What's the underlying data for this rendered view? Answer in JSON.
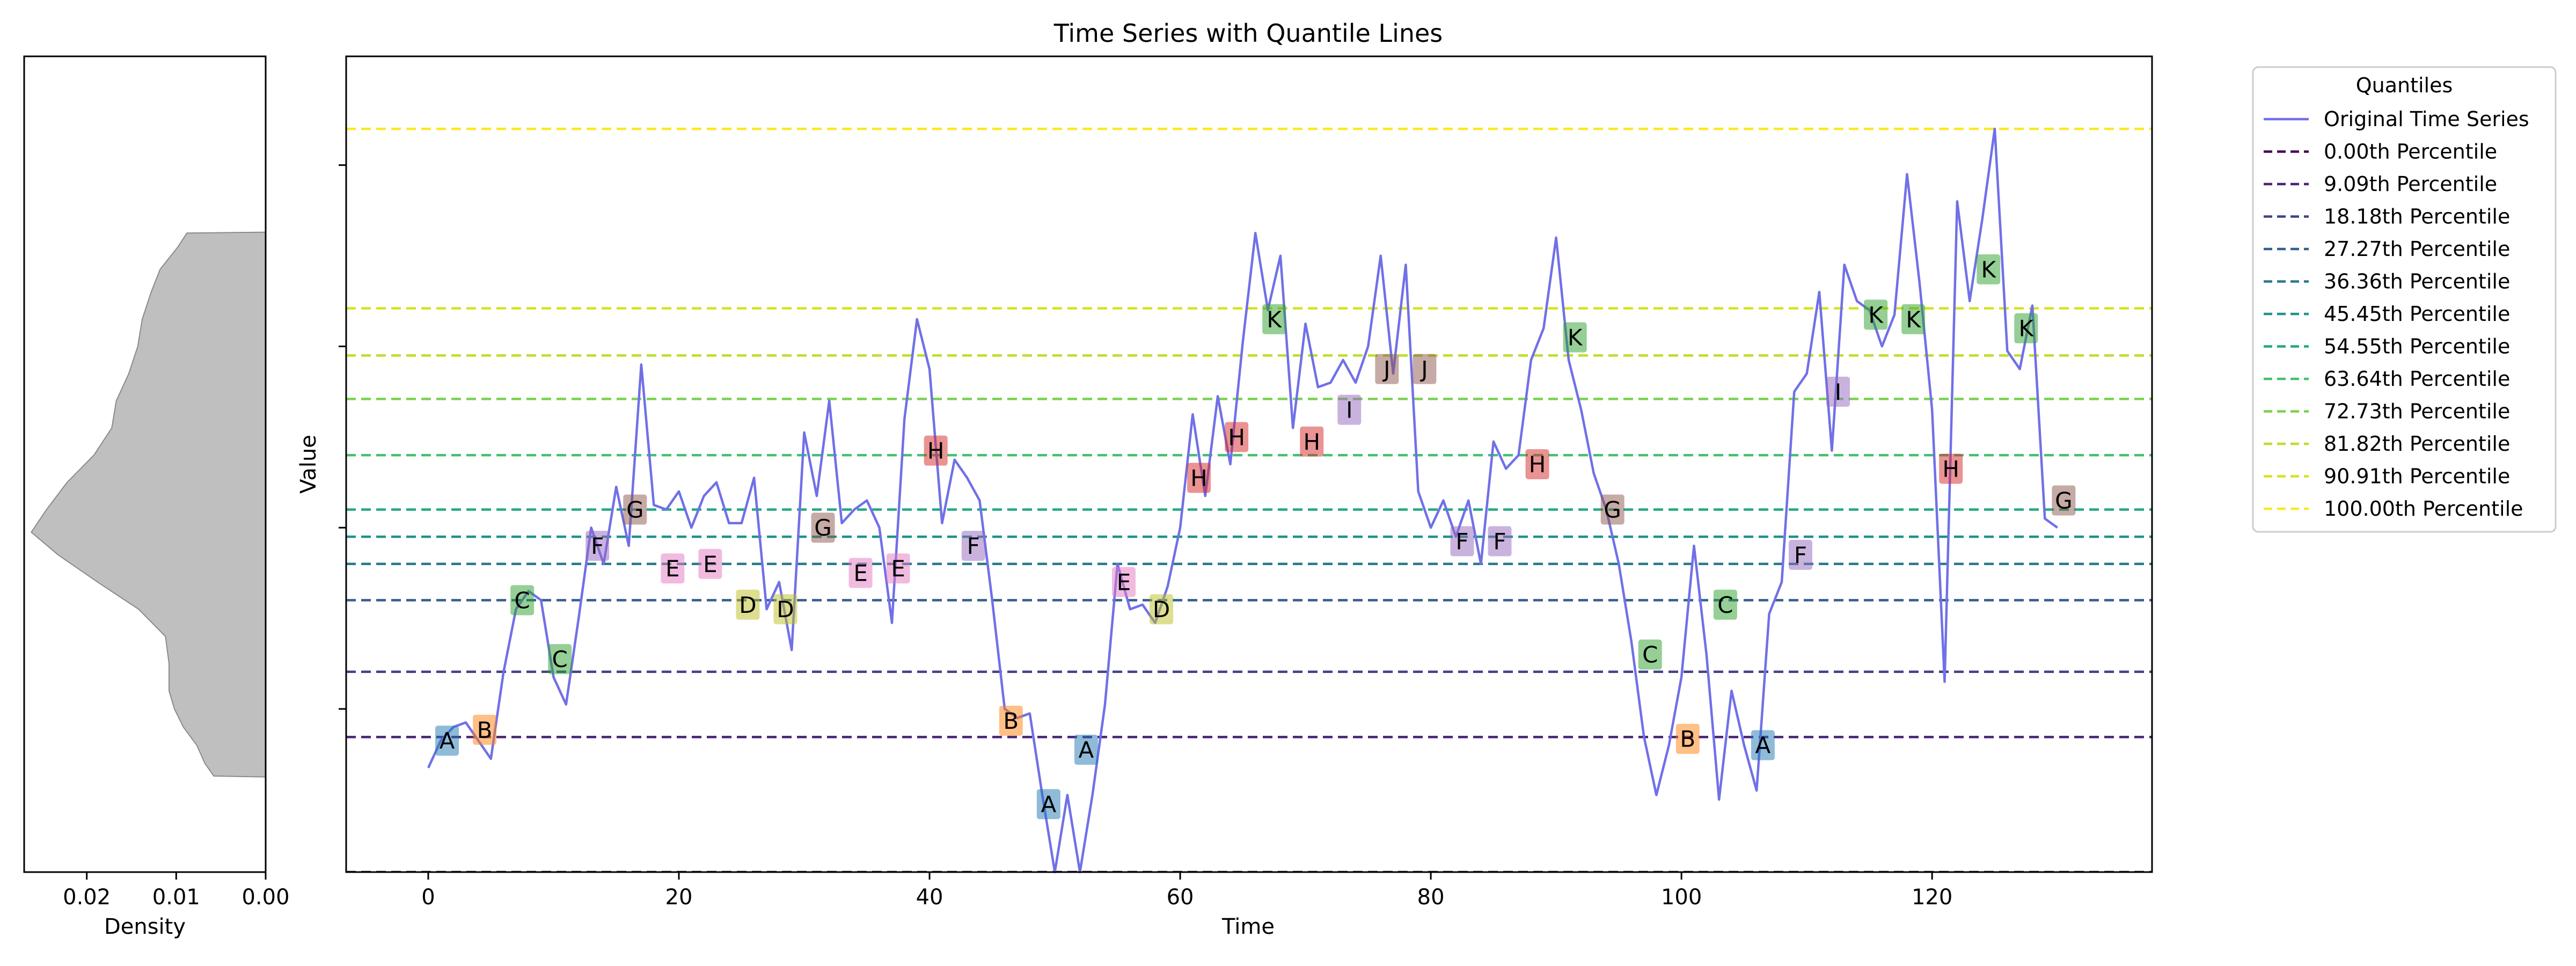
{
  "chart_data": {
    "type": "line",
    "title": "Time Series with Quantile Lines",
    "xlabel": "Time",
    "ylabel": "Value",
    "xlim": [
      -6.55,
      137.55
    ],
    "ylim": [
      -0.8,
      8.2
    ],
    "x_ticks": [
      0,
      20,
      40,
      60,
      80,
      100,
      120
    ],
    "y_ticks_unlabeled": [
      1,
      3,
      5,
      7
    ],
    "grid": false,
    "legend": {
      "title": "Quantiles",
      "placement": "outside-right"
    },
    "series": [
      {
        "name": "Original Time Series",
        "color": "#7070e8",
        "values": [
          0.35,
          0.65,
          0.8,
          0.85,
          0.65,
          0.45,
          1.4,
          2.1,
          2.3,
          2.2,
          1.35,
          1.05,
          2.0,
          3.0,
          2.6,
          3.45,
          2.8,
          4.8,
          3.25,
          3.2,
          3.4,
          3.0,
          3.35,
          3.5,
          3.05,
          3.05,
          3.55,
          2.1,
          2.4,
          1.65,
          4.05,
          3.35,
          4.4,
          3.05,
          3.2,
          3.3,
          3.0,
          1.95,
          4.2,
          5.3,
          4.75,
          3.05,
          3.75,
          3.55,
          3.3,
          2.2,
          1.0,
          0.9,
          0.95,
          0.05,
          -0.8,
          0.05,
          -0.8,
          0.05,
          1.05,
          2.6,
          2.1,
          2.15,
          1.95,
          2.35,
          3.0,
          4.25,
          3.35,
          4.45,
          3.7,
          5.05,
          6.25,
          5.4,
          6.0,
          4.1,
          5.25,
          4.55,
          4.6,
          4.85,
          4.6,
          5.0,
          6.0,
          4.7,
          5.9,
          3.4,
          3.0,
          3.3,
          2.9,
          3.3,
          2.6,
          3.95,
          3.65,
          3.8,
          4.85,
          5.2,
          6.2,
          4.85,
          4.3,
          3.6,
          3.2,
          2.6,
          1.75,
          0.7,
          0.05,
          0.6,
          1.35,
          2.8,
          1.6,
          0.0,
          1.2,
          0.6,
          0.1,
          2.05,
          2.4,
          4.5,
          4.7,
          5.6,
          3.85,
          5.9,
          5.5,
          5.4,
          5.0,
          5.35,
          6.9,
          5.7,
          4.3,
          1.3,
          6.6,
          5.5,
          6.4,
          7.4,
          4.95,
          4.75,
          5.45,
          3.1,
          3.0
        ]
      }
    ],
    "quantiles": [
      {
        "label": "0.00th Percentile",
        "value": -0.8,
        "color": "#440154"
      },
      {
        "label": "9.09th Percentile",
        "value": 0.69,
        "color": "#482475"
      },
      {
        "label": "18.18th Percentile",
        "value": 1.41,
        "color": "#414487"
      },
      {
        "label": "27.27th Percentile",
        "value": 2.2,
        "color": "#355f8d"
      },
      {
        "label": "36.36th Percentile",
        "value": 2.6,
        "color": "#2a788e"
      },
      {
        "label": "45.45th Percentile",
        "value": 2.9,
        "color": "#21918c"
      },
      {
        "label": "54.55th Percentile",
        "value": 3.2,
        "color": "#22a884"
      },
      {
        "label": "63.64th Percentile",
        "value": 3.8,
        "color": "#44bf70"
      },
      {
        "label": "72.73th Percentile",
        "value": 4.42,
        "color": "#7ad151"
      },
      {
        "label": "81.82th Percentile",
        "value": 4.9,
        "color": "#bddf26"
      },
      {
        "label": "90.91th Percentile",
        "value": 5.42,
        "color": "#d6e21d"
      },
      {
        "label": "100.00th Percentile",
        "value": 7.4,
        "color": "#fde725"
      }
    ],
    "segment_labels": [
      {
        "text": "A",
        "x": 1.5,
        "y": 0.65
      },
      {
        "text": "B",
        "x": 4.5,
        "y": 0.77
      },
      {
        "text": "C",
        "x": 7.5,
        "y": 2.2
      },
      {
        "text": "C",
        "x": 10.5,
        "y": 1.55
      },
      {
        "text": "F",
        "x": 13.5,
        "y": 2.8
      },
      {
        "text": "G",
        "x": 16.5,
        "y": 3.2
      },
      {
        "text": "E",
        "x": 19.5,
        "y": 2.55
      },
      {
        "text": "E",
        "x": 22.5,
        "y": 2.6
      },
      {
        "text": "D",
        "x": 25.5,
        "y": 2.15
      },
      {
        "text": "D",
        "x": 28.5,
        "y": 2.1
      },
      {
        "text": "G",
        "x": 31.5,
        "y": 3.0
      },
      {
        "text": "E",
        "x": 34.5,
        "y": 2.5
      },
      {
        "text": "E",
        "x": 37.5,
        "y": 2.55
      },
      {
        "text": "H",
        "x": 40.5,
        "y": 3.85
      },
      {
        "text": "F",
        "x": 43.5,
        "y": 2.8
      },
      {
        "text": "B",
        "x": 46.5,
        "y": 0.87
      },
      {
        "text": "A",
        "x": 49.5,
        "y": -0.05
      },
      {
        "text": "A",
        "x": 52.5,
        "y": 0.55
      },
      {
        "text": "E",
        "x": 55.5,
        "y": 2.4
      },
      {
        "text": "D",
        "x": 58.5,
        "y": 2.1
      },
      {
        "text": "H",
        "x": 61.5,
        "y": 3.55
      },
      {
        "text": "H",
        "x": 64.5,
        "y": 4.0
      },
      {
        "text": "K",
        "x": 67.5,
        "y": 5.3
      },
      {
        "text": "H",
        "x": 70.5,
        "y": 3.95
      },
      {
        "text": "I",
        "x": 73.5,
        "y": 4.3
      },
      {
        "text": "J",
        "x": 76.5,
        "y": 4.75
      },
      {
        "text": "J",
        "x": 79.5,
        "y": 4.75
      },
      {
        "text": "F",
        "x": 82.5,
        "y": 2.85
      },
      {
        "text": "F",
        "x": 85.5,
        "y": 2.85
      },
      {
        "text": "H",
        "x": 88.5,
        "y": 3.7
      },
      {
        "text": "K",
        "x": 91.5,
        "y": 5.1
      },
      {
        "text": "G",
        "x": 94.5,
        "y": 3.2
      },
      {
        "text": "C",
        "x": 97.5,
        "y": 1.6
      },
      {
        "text": "B",
        "x": 100.5,
        "y": 0.67
      },
      {
        "text": "C",
        "x": 103.5,
        "y": 2.15
      },
      {
        "text": "A",
        "x": 106.5,
        "y": 0.6
      },
      {
        "text": "F",
        "x": 109.5,
        "y": 2.7
      },
      {
        "text": "I",
        "x": 112.5,
        "y": 4.5
      },
      {
        "text": "K",
        "x": 115.5,
        "y": 5.35
      },
      {
        "text": "K",
        "x": 118.5,
        "y": 5.3
      },
      {
        "text": "H",
        "x": 121.5,
        "y": 3.65
      },
      {
        "text": "K",
        "x": 124.5,
        "y": 5.85
      },
      {
        "text": "K",
        "x": 127.5,
        "y": 5.2
      },
      {
        "text": "G",
        "x": 130.5,
        "y": 3.3
      }
    ],
    "label_colors": {
      "A": "#1f77b4",
      "B": "#ff7f0e",
      "C": "#2ca02c",
      "D": "#bcbd22",
      "E": "#e377c2",
      "F": "#9467bd",
      "G": "#8c564b",
      "H": "#d62728",
      "I": "#9467bd",
      "J": "#8c564b",
      "K": "#2ca02c"
    },
    "density": {
      "xlabel": "Density",
      "x_ticks": [
        {
          "value": 0.02,
          "label": "0.02"
        },
        {
          "value": 0.01,
          "label": "0.01"
        },
        {
          "value": 0.0,
          "label": "0.00"
        }
      ],
      "xlim_inverted": [
        0.027,
        0.0
      ],
      "fill_color": "#bfbfbf",
      "profile": [
        [
          0.25,
          0.0
        ],
        [
          0.26,
          0.0058
        ],
        [
          0.4,
          0.0068
        ],
        [
          0.6,
          0.0077
        ],
        [
          0.8,
          0.0092
        ],
        [
          1.0,
          0.0102
        ],
        [
          1.2,
          0.0108
        ],
        [
          1.5,
          0.0108
        ],
        [
          1.8,
          0.0112
        ],
        [
          2.1,
          0.0142
        ],
        [
          2.4,
          0.0188
        ],
        [
          2.7,
          0.0232
        ],
        [
          2.95,
          0.0262
        ],
        [
          3.2,
          0.0245
        ],
        [
          3.5,
          0.0222
        ],
        [
          3.8,
          0.0192
        ],
        [
          4.1,
          0.0172
        ],
        [
          4.4,
          0.0167
        ],
        [
          4.7,
          0.0153
        ],
        [
          5.0,
          0.0143
        ],
        [
          5.3,
          0.0138
        ],
        [
          5.6,
          0.0128
        ],
        [
          5.85,
          0.0118
        ],
        [
          6.1,
          0.0098
        ],
        [
          6.25,
          0.0088
        ],
        [
          6.26,
          0.0
        ]
      ]
    }
  }
}
